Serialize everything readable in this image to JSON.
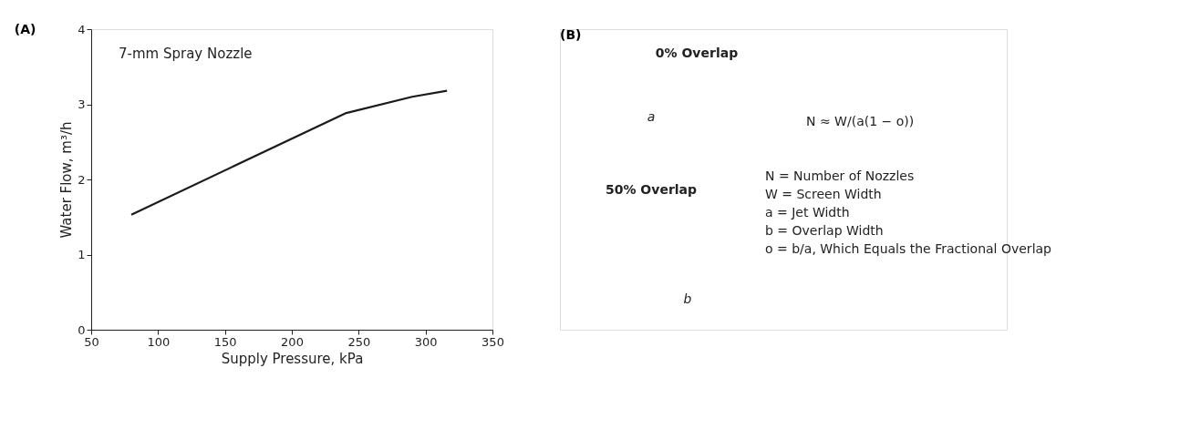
{
  "chart_data": [
    {
      "type": "line",
      "title": "(A)",
      "xlabel": "Supply Pressure, kPa",
      "ylabel": "Water Flow, m³/h",
      "x": [
        80,
        240,
        290,
        316
      ],
      "series": [
        {
          "color": "#1a1a1a",
          "values": [
            1.53,
            2.88,
            3.1,
            3.18
          ]
        }
      ],
      "xlim": [
        50,
        350
      ],
      "xticks": [
        50,
        100,
        150,
        200,
        250,
        300,
        350
      ],
      "ylim": [
        0,
        4
      ],
      "yticks": [
        0,
        1,
        2,
        3,
        4
      ],
      "grid": false,
      "legend": false,
      "marker": "none",
      "line_style": "solid",
      "annotations": [
        "7-mm Spray Nozzle"
      ]
    },
    {
      "type": "other",
      "title": "(B)",
      "annotations": [
        "0% Overlap",
        "a",
        "N ≈ W/(a(1 − o))",
        "50% Overlap",
        "b",
        "N = Number of Nozzles",
        "W = Screen Width",
        "a = Jet Width",
        "b = Overlap Width",
        "o = b/a, Which Equals the Fractional Overlap"
      ]
    }
  ]
}
